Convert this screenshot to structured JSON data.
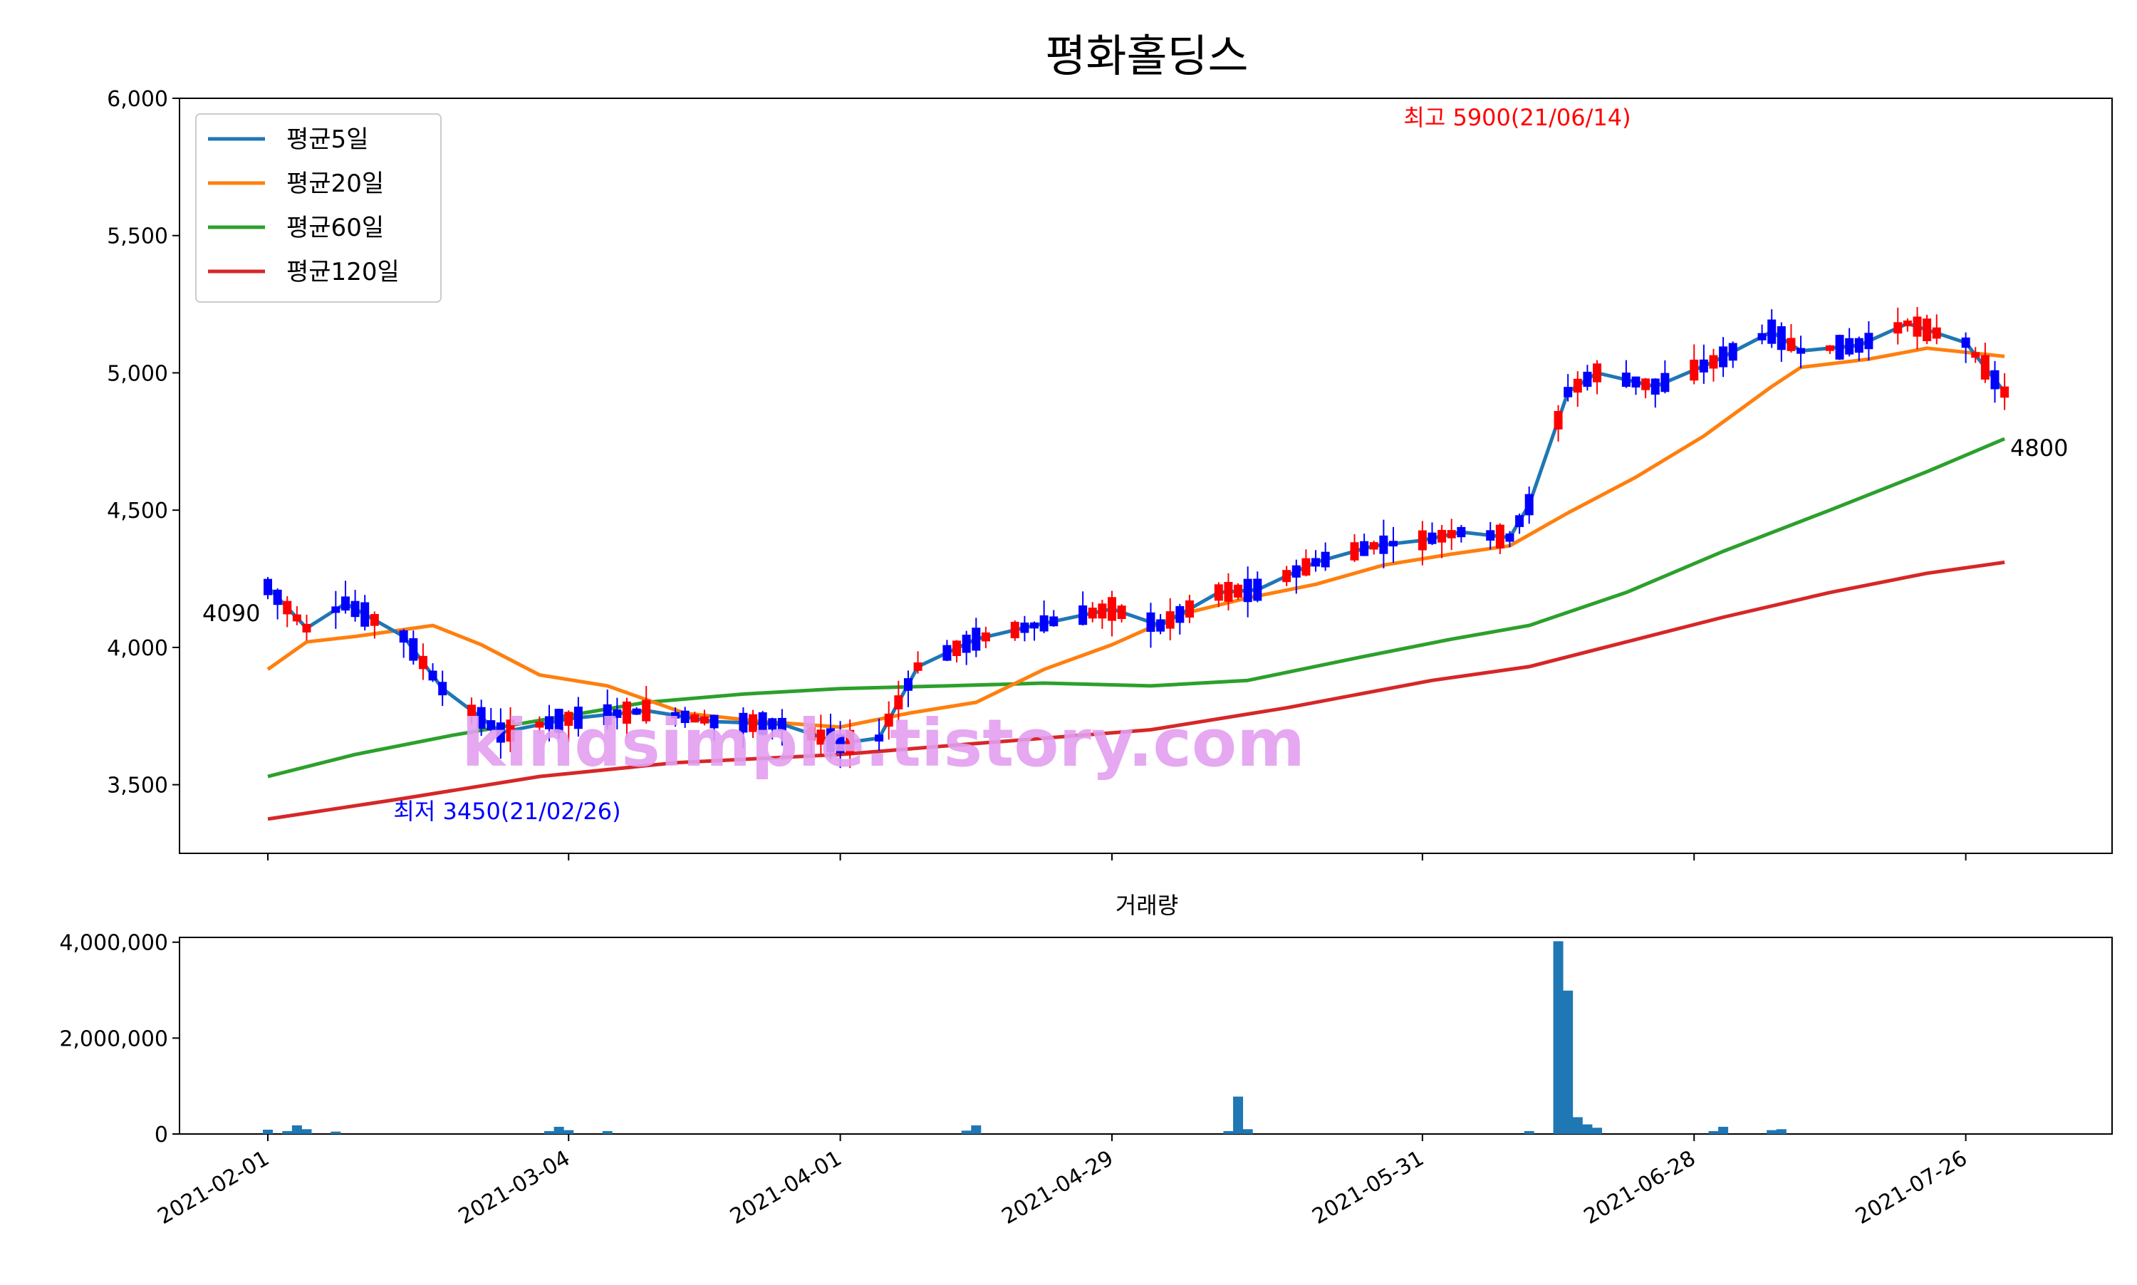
{
  "chart_data": [
    {
      "type": "candlestick",
      "title": "평화홀딩스",
      "xlabel": "",
      "ylabel": "",
      "ylim": [
        3250,
        6000
      ],
      "yticks": [
        3500,
        4000,
        4500,
        5000,
        5500,
        6000
      ],
      "ytick_labels": [
        "3,500",
        "4,000",
        "4,500",
        "5,000",
        "5,500",
        "6,000"
      ],
      "xticks": [
        "2021-02-01",
        "2021-03-04",
        "2021-04-01",
        "2021-04-29",
        "2021-05-31",
        "2021-06-28",
        "2021-07-26"
      ],
      "legend_position": "top-left",
      "grid": false,
      "watermark": "kindsimple.tistory.com",
      "colors": {
        "up": "#ff0000",
        "down": "#0000ff",
        "ma5": "#1f77b4",
        "ma20": "#ff7f0e",
        "ma60": "#2ca02c",
        "ma120": "#d62728"
      },
      "annotations": {
        "high": "최고 5900(21/06/14)",
        "low": "최저 3450(21/02/26)",
        "first_close": "4090",
        "last_close": "4800"
      },
      "series": [
        {
          "name": "평균5일",
          "x": [
            "2021-02-01",
            "2021-02-05",
            "2021-02-09",
            "2021-02-15",
            "2021-02-19",
            "2021-02-25",
            "2021-03-04",
            "2021-03-12",
            "2021-03-19",
            "2021-03-26",
            "2021-04-01",
            "2021-04-05",
            "2021-04-09",
            "2021-04-15",
            "2021-04-21",
            "2021-04-29",
            "2021-05-04",
            "2021-05-10",
            "2021-05-14",
            "2021-05-20",
            "2021-05-26",
            "2021-05-31",
            "2021-06-04",
            "2021-06-09",
            "2021-06-11",
            "2021-06-15",
            "2021-06-18",
            "2021-06-24",
            "2021-06-30",
            "2021-07-06",
            "2021-07-09",
            "2021-07-15",
            "2021-07-20",
            "2021-07-26",
            "2021-07-30"
          ],
          "values": [
            4220,
            4070,
            4160,
            4040,
            3850,
            3690,
            3740,
            3770,
            3730,
            3720,
            3650,
            3670,
            3930,
            4030,
            4080,
            4140,
            4080,
            4200,
            4210,
            4310,
            4370,
            4390,
            4420,
            4400,
            4520,
            4930,
            5000,
            4950,
            5040,
            5150,
            5080,
            5100,
            5180,
            5110,
            4930
          ]
        },
        {
          "name": "평균20일",
          "x": [
            "2021-02-01",
            "2021-02-05",
            "2021-02-10",
            "2021-02-18",
            "2021-02-23",
            "2021-03-01",
            "2021-03-08",
            "2021-03-16",
            "2021-03-24",
            "2021-04-01",
            "2021-04-08",
            "2021-04-15",
            "2021-04-22",
            "2021-04-29",
            "2021-05-06",
            "2021-05-13",
            "2021-05-20",
            "2021-05-27",
            "2021-06-03",
            "2021-06-09",
            "2021-06-15",
            "2021-06-22",
            "2021-06-29",
            "2021-07-06",
            "2021-07-09",
            "2021-07-16",
            "2021-07-22",
            "2021-07-30"
          ],
          "values": [
            3920,
            4020,
            4040,
            4080,
            4010,
            3900,
            3860,
            3760,
            3730,
            3710,
            3760,
            3800,
            3920,
            4010,
            4120,
            4180,
            4230,
            4300,
            4340,
            4370,
            4490,
            4620,
            4770,
            4950,
            5020,
            5050,
            5090,
            5060
          ]
        },
        {
          "name": "평균60일",
          "x": [
            "2021-02-01",
            "2021-02-10",
            "2021-02-20",
            "2021-03-02",
            "2021-03-12",
            "2021-03-22",
            "2021-04-01",
            "2021-04-12",
            "2021-04-22",
            "2021-05-03",
            "2021-05-13",
            "2021-05-24",
            "2021-06-03",
            "2021-06-11",
            "2021-06-21",
            "2021-07-01",
            "2021-07-12",
            "2021-07-22",
            "2021-07-30"
          ],
          "values": [
            3530,
            3610,
            3680,
            3740,
            3800,
            3830,
            3850,
            3860,
            3870,
            3860,
            3880,
            3960,
            4030,
            4080,
            4200,
            4350,
            4500,
            4640,
            4760
          ]
        },
        {
          "name": "평균120일",
          "x": [
            "2021-02-01",
            "2021-02-15",
            "2021-03-01",
            "2021-03-15",
            "2021-04-01",
            "2021-04-15",
            "2021-05-03",
            "2021-05-17",
            "2021-06-01",
            "2021-06-11",
            "2021-06-21",
            "2021-07-01",
            "2021-07-12",
            "2021-07-22",
            "2021-07-30"
          ],
          "values": [
            3375,
            3450,
            3530,
            3580,
            3610,
            3650,
            3700,
            3780,
            3880,
            3930,
            4020,
            4110,
            4200,
            4270,
            4310
          ]
        }
      ]
    },
    {
      "type": "bar",
      "title": "거래량",
      "ylim": [
        0,
        4100000
      ],
      "yticks": [
        0,
        2000000,
        4000000
      ],
      "ytick_labels": [
        "0",
        "2,000,000",
        "4,000,000"
      ],
      "xticks": [
        "2021-02-01",
        "2021-03-04",
        "2021-04-01",
        "2021-04-29",
        "2021-05-31",
        "2021-06-28",
        "2021-07-26"
      ],
      "color": "#1f77b4",
      "x": [
        "2021-02-01",
        "2021-02-03",
        "2021-02-04",
        "2021-02-05",
        "2021-02-08",
        "2021-03-02",
        "2021-03-03",
        "2021-03-04",
        "2021-03-08",
        "2021-04-14",
        "2021-04-15",
        "2021-05-11",
        "2021-05-12",
        "2021-05-13",
        "2021-06-11",
        "2021-06-14",
        "2021-06-15",
        "2021-06-16",
        "2021-06-17",
        "2021-06-18",
        "2021-06-30",
        "2021-07-01",
        "2021-07-06",
        "2021-07-07"
      ],
      "values": [
        90000,
        60000,
        180000,
        100000,
        50000,
        60000,
        150000,
        80000,
        60000,
        70000,
        180000,
        60000,
        780000,
        100000,
        60000,
        4020000,
        2990000,
        350000,
        200000,
        130000,
        60000,
        150000,
        80000,
        100000
      ]
    }
  ]
}
